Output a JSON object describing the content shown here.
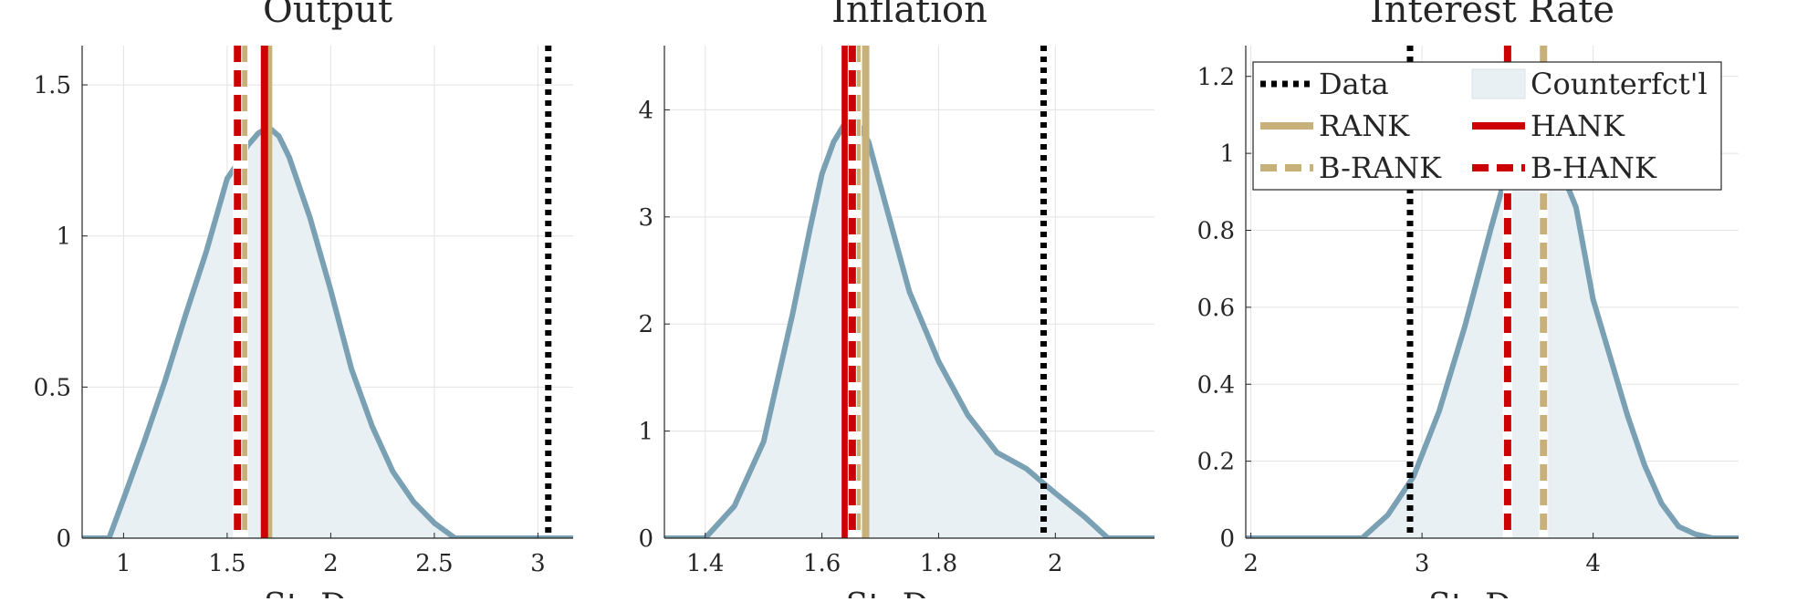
{
  "chart_data": [
    {
      "type": "area",
      "title": "Output",
      "xlabel": "St. Dev.",
      "xlim": [
        0.8,
        3.17
      ],
      "ylim": [
        0,
        1.63
      ],
      "xticks": [
        1,
        1.5,
        2,
        2.5,
        3
      ],
      "xtick_labels": [
        "1",
        "1.5",
        "2",
        "2.5",
        "3"
      ],
      "yticks": [
        0,
        0.5,
        1,
        1.5
      ],
      "ytick_labels": [
        "0",
        "0.5",
        "1",
        "1.5"
      ],
      "grid": true,
      "density": {
        "name": "Counterfct'l",
        "x": [
          0.8,
          0.93,
          1.0,
          1.1,
          1.2,
          1.3,
          1.4,
          1.5,
          1.55,
          1.6,
          1.65,
          1.7,
          1.75,
          1.8,
          1.9,
          2.0,
          2.1,
          2.2,
          2.3,
          2.4,
          2.5,
          2.6,
          3.17
        ],
        "y": [
          0,
          0,
          0.13,
          0.32,
          0.52,
          0.74,
          0.95,
          1.19,
          1.24,
          1.3,
          1.34,
          1.36,
          1.33,
          1.26,
          1.06,
          0.82,
          0.56,
          0.37,
          0.22,
          0.12,
          0.05,
          0,
          0
        ]
      },
      "vlines": [
        {
          "name": "Data",
          "x": 3.05,
          "style": "dotted",
          "color": "#000000"
        },
        {
          "name": "RANK",
          "x": 1.7,
          "style": "solid",
          "color": "#c8b07a"
        },
        {
          "name": "B-RANK",
          "x": 1.58,
          "style": "dashed",
          "color": "#c8b07a"
        },
        {
          "name": "HANK",
          "x": 1.68,
          "style": "solid",
          "color": "#cc0000"
        },
        {
          "name": "B-HANK",
          "x": 1.55,
          "style": "dashed",
          "color": "#cc0000"
        }
      ]
    },
    {
      "type": "area",
      "title": "Inflation",
      "xlabel": "St. Dev.",
      "xlim": [
        1.33,
        2.17
      ],
      "ylim": [
        0,
        4.6
      ],
      "xticks": [
        1.4,
        1.6,
        1.8,
        2.0
      ],
      "xtick_labels": [
        "1.4",
        "1.6",
        "1.8",
        "2"
      ],
      "yticks": [
        0,
        1,
        2,
        3,
        4
      ],
      "ytick_labels": [
        "0",
        "1",
        "2",
        "3",
        "4"
      ],
      "grid": true,
      "density": {
        "name": "Counterfct'l",
        "x": [
          1.33,
          1.4,
          1.45,
          1.5,
          1.55,
          1.58,
          1.6,
          1.62,
          1.64,
          1.66,
          1.68,
          1.7,
          1.72,
          1.75,
          1.8,
          1.85,
          1.9,
          1.95,
          2.0,
          2.05,
          2.09,
          2.17
        ],
        "y": [
          0,
          0,
          0.3,
          0.9,
          2.1,
          2.9,
          3.4,
          3.7,
          3.88,
          3.88,
          3.7,
          3.3,
          2.9,
          2.3,
          1.65,
          1.15,
          0.8,
          0.65,
          0.42,
          0.2,
          0,
          0
        ]
      },
      "vlines": [
        {
          "name": "Data",
          "x": 1.98,
          "style": "dotted",
          "color": "#000000"
        },
        {
          "name": "RANK",
          "x": 1.675,
          "style": "solid",
          "color": "#c8b07a"
        },
        {
          "name": "B-RANK",
          "x": 1.66,
          "style": "dashed",
          "color": "#c8b07a"
        },
        {
          "name": "HANK",
          "x": 1.64,
          "style": "solid",
          "color": "#cc0000"
        },
        {
          "name": "B-HANK",
          "x": 1.652,
          "style": "dashed",
          "color": "#cc0000"
        }
      ]
    },
    {
      "type": "area",
      "title": "Interest Rate",
      "xlabel": "St. Dev.",
      "xlim": [
        1.97,
        4.85
      ],
      "ylim": [
        0,
        1.28
      ],
      "xticks": [
        2,
        3,
        4
      ],
      "xtick_labels": [
        "2",
        "3",
        "4"
      ],
      "yticks": [
        0,
        0.2,
        0.4,
        0.6,
        0.8,
        1.0,
        1.2
      ],
      "ytick_labels": [
        "0",
        "0.2",
        "0.4",
        "0.6",
        "0.8",
        "1",
        "1.2"
      ],
      "grid": true,
      "density": {
        "name": "Counterfct'l",
        "x": [
          1.97,
          2.65,
          2.8,
          2.95,
          3.1,
          3.25,
          3.4,
          3.5,
          3.6,
          3.7,
          3.8,
          3.9,
          4.0,
          4.1,
          4.2,
          4.3,
          4.4,
          4.5,
          4.6,
          4.7,
          4.85
        ],
        "y": [
          0,
          0,
          0.06,
          0.16,
          0.33,
          0.55,
          0.8,
          0.96,
          1.02,
          1.0,
          0.97,
          0.86,
          0.62,
          0.47,
          0.32,
          0.19,
          0.09,
          0.03,
          0.01,
          0,
          0
        ]
      },
      "vlines": [
        {
          "name": "Data",
          "x": 2.93,
          "style": "dotted",
          "color": "#000000"
        },
        {
          "name": "RANK",
          "x": 3.71,
          "style": "solid",
          "color": "#c8b07a"
        },
        {
          "name": "B-RANK",
          "x": 3.71,
          "style": "dashed",
          "color": "#c8b07a"
        },
        {
          "name": "HANK",
          "x": 3.5,
          "style": "solid",
          "color": "#cc0000"
        },
        {
          "name": "B-HANK",
          "x": 3.5,
          "style": "dashed",
          "color": "#cc0000"
        }
      ],
      "legend": {
        "placement": "top-right",
        "columns": 2,
        "entries": [
          {
            "label": "Data",
            "kind": "dotted",
            "color": "#000000"
          },
          {
            "label": "Counterfct'l",
            "kind": "patch",
            "color": "#e9f0f4"
          },
          {
            "label": "RANK",
            "kind": "solid",
            "color": "#c8b07a"
          },
          {
            "label": "HANK",
            "kind": "solid",
            "color": "#cc0000"
          },
          {
            "label": "B-RANK",
            "kind": "dashed",
            "color": "#c8b07a"
          },
          {
            "label": "B-HANK",
            "kind": "dashed",
            "color": "#cc0000"
          }
        ]
      }
    }
  ],
  "colors": {
    "density_fill": "#e9f0f4",
    "density_line": "#7aa0b4",
    "grid": "#e3e3e3",
    "axis": "#262626"
  }
}
